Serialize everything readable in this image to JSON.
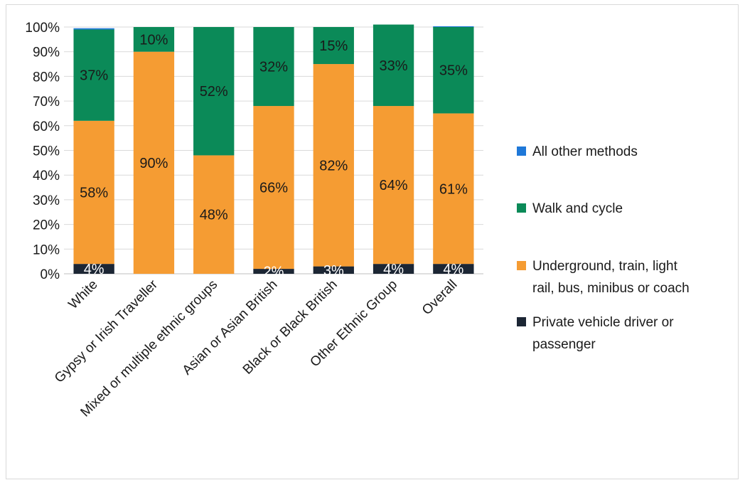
{
  "chart_data": {
    "type": "bar",
    "stacked": true,
    "title": "",
    "xlabel": "",
    "ylabel": "",
    "ylim": [
      0,
      100
    ],
    "y_ticks": [
      "0%",
      "10%",
      "20%",
      "30%",
      "40%",
      "50%",
      "60%",
      "70%",
      "80%",
      "90%",
      "100%"
    ],
    "grid": true,
    "legend_position": "right",
    "categories": [
      "White",
      "Gypsy or Irish Traveller",
      "Mixed or multiple ethnic groups",
      "Asian or Asian British",
      "Black or Black British",
      "Other Ethnic Group",
      "Overall"
    ],
    "series": [
      {
        "name": "Private vehicle driver or passenger",
        "color": "#1c2634",
        "label_color": "#ffffff",
        "values": [
          4,
          0,
          0,
          2,
          3,
          4,
          4
        ],
        "labels": [
          "4%",
          "",
          "",
          "2%",
          "3%",
          "4%",
          "4%"
        ]
      },
      {
        "name": "Underground, train, light rail, bus, minibus or coach",
        "color": "#f59c33",
        "label_color": "#1a1a1a",
        "values": [
          58,
          90,
          48,
          66,
          82,
          64,
          61
        ],
        "labels": [
          "58%",
          "90%",
          "48%",
          "66%",
          "82%",
          "64%",
          "61%"
        ]
      },
      {
        "name": "Walk and cycle",
        "color": "#0b8a58",
        "label_color": "#1a1a1a",
        "values": [
          37,
          10,
          52,
          32,
          15,
          33,
          35
        ],
        "labels": [
          "37%",
          "10%",
          "52%",
          "32%",
          "15%",
          "33%",
          "35%"
        ]
      },
      {
        "name": "All other methods",
        "color": "#1f78d8",
        "label_color": "#1a1a1a",
        "values": [
          0.5,
          0,
          0,
          0,
          0,
          0,
          0.3
        ],
        "labels": [
          "",
          "",
          "",
          "",
          "",
          "",
          ""
        ]
      }
    ],
    "legend_order": [
      "All other methods",
      "Walk and cycle",
      "Underground, train, light rail, bus, minibus or coach",
      "Private vehicle driver or passenger"
    ],
    "legend_lines": [
      [
        "All other methods"
      ],
      [
        "Walk and cycle"
      ],
      [
        "Underground, train, light",
        "rail, bus, minibus or coach"
      ],
      [
        "Private vehicle driver or",
        "passenger"
      ]
    ]
  }
}
